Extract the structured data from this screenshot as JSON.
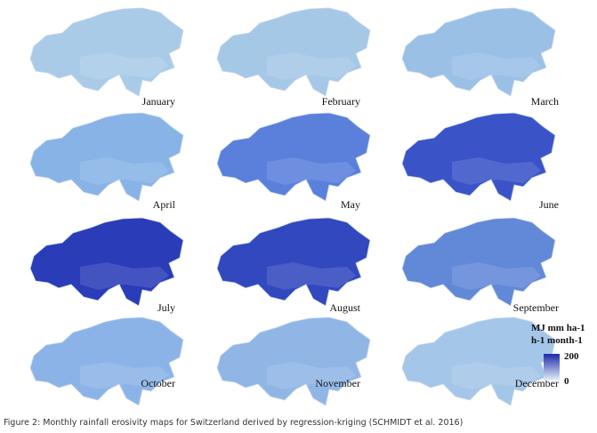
{
  "panels": [
    {
      "label": "January",
      "color": "#a9cbe8"
    },
    {
      "label": "February",
      "color": "#a6c8e7"
    },
    {
      "label": "March",
      "color": "#9ac0e6"
    },
    {
      "label": "April",
      "color": "#88b3e6"
    },
    {
      "label": "May",
      "color": "#5a80dc"
    },
    {
      "label": "June",
      "color": "#3a54c8"
    },
    {
      "label": "July",
      "color": "#2a3cb8"
    },
    {
      "label": "August",
      "color": "#3148bf"
    },
    {
      "label": "September",
      "color": "#6288d8"
    },
    {
      "label": "October",
      "color": "#8bb3e8"
    },
    {
      "label": "November",
      "color": "#90b6e6"
    },
    {
      "label": "December",
      "color": "#a4c6e8"
    }
  ],
  "legend": {
    "title": [
      "MJ mm ha-1",
      "h-1 month-1"
    ],
    "max": 200,
    "min": 0,
    "color_max": "#1e2aa8",
    "color_min": "#e6f0fb"
  },
  "caption": "Figure 2: Monthly rainfall erosivity maps for Switzerland derived by regression-kriging (SCHMIDT et al. 2016)"
}
